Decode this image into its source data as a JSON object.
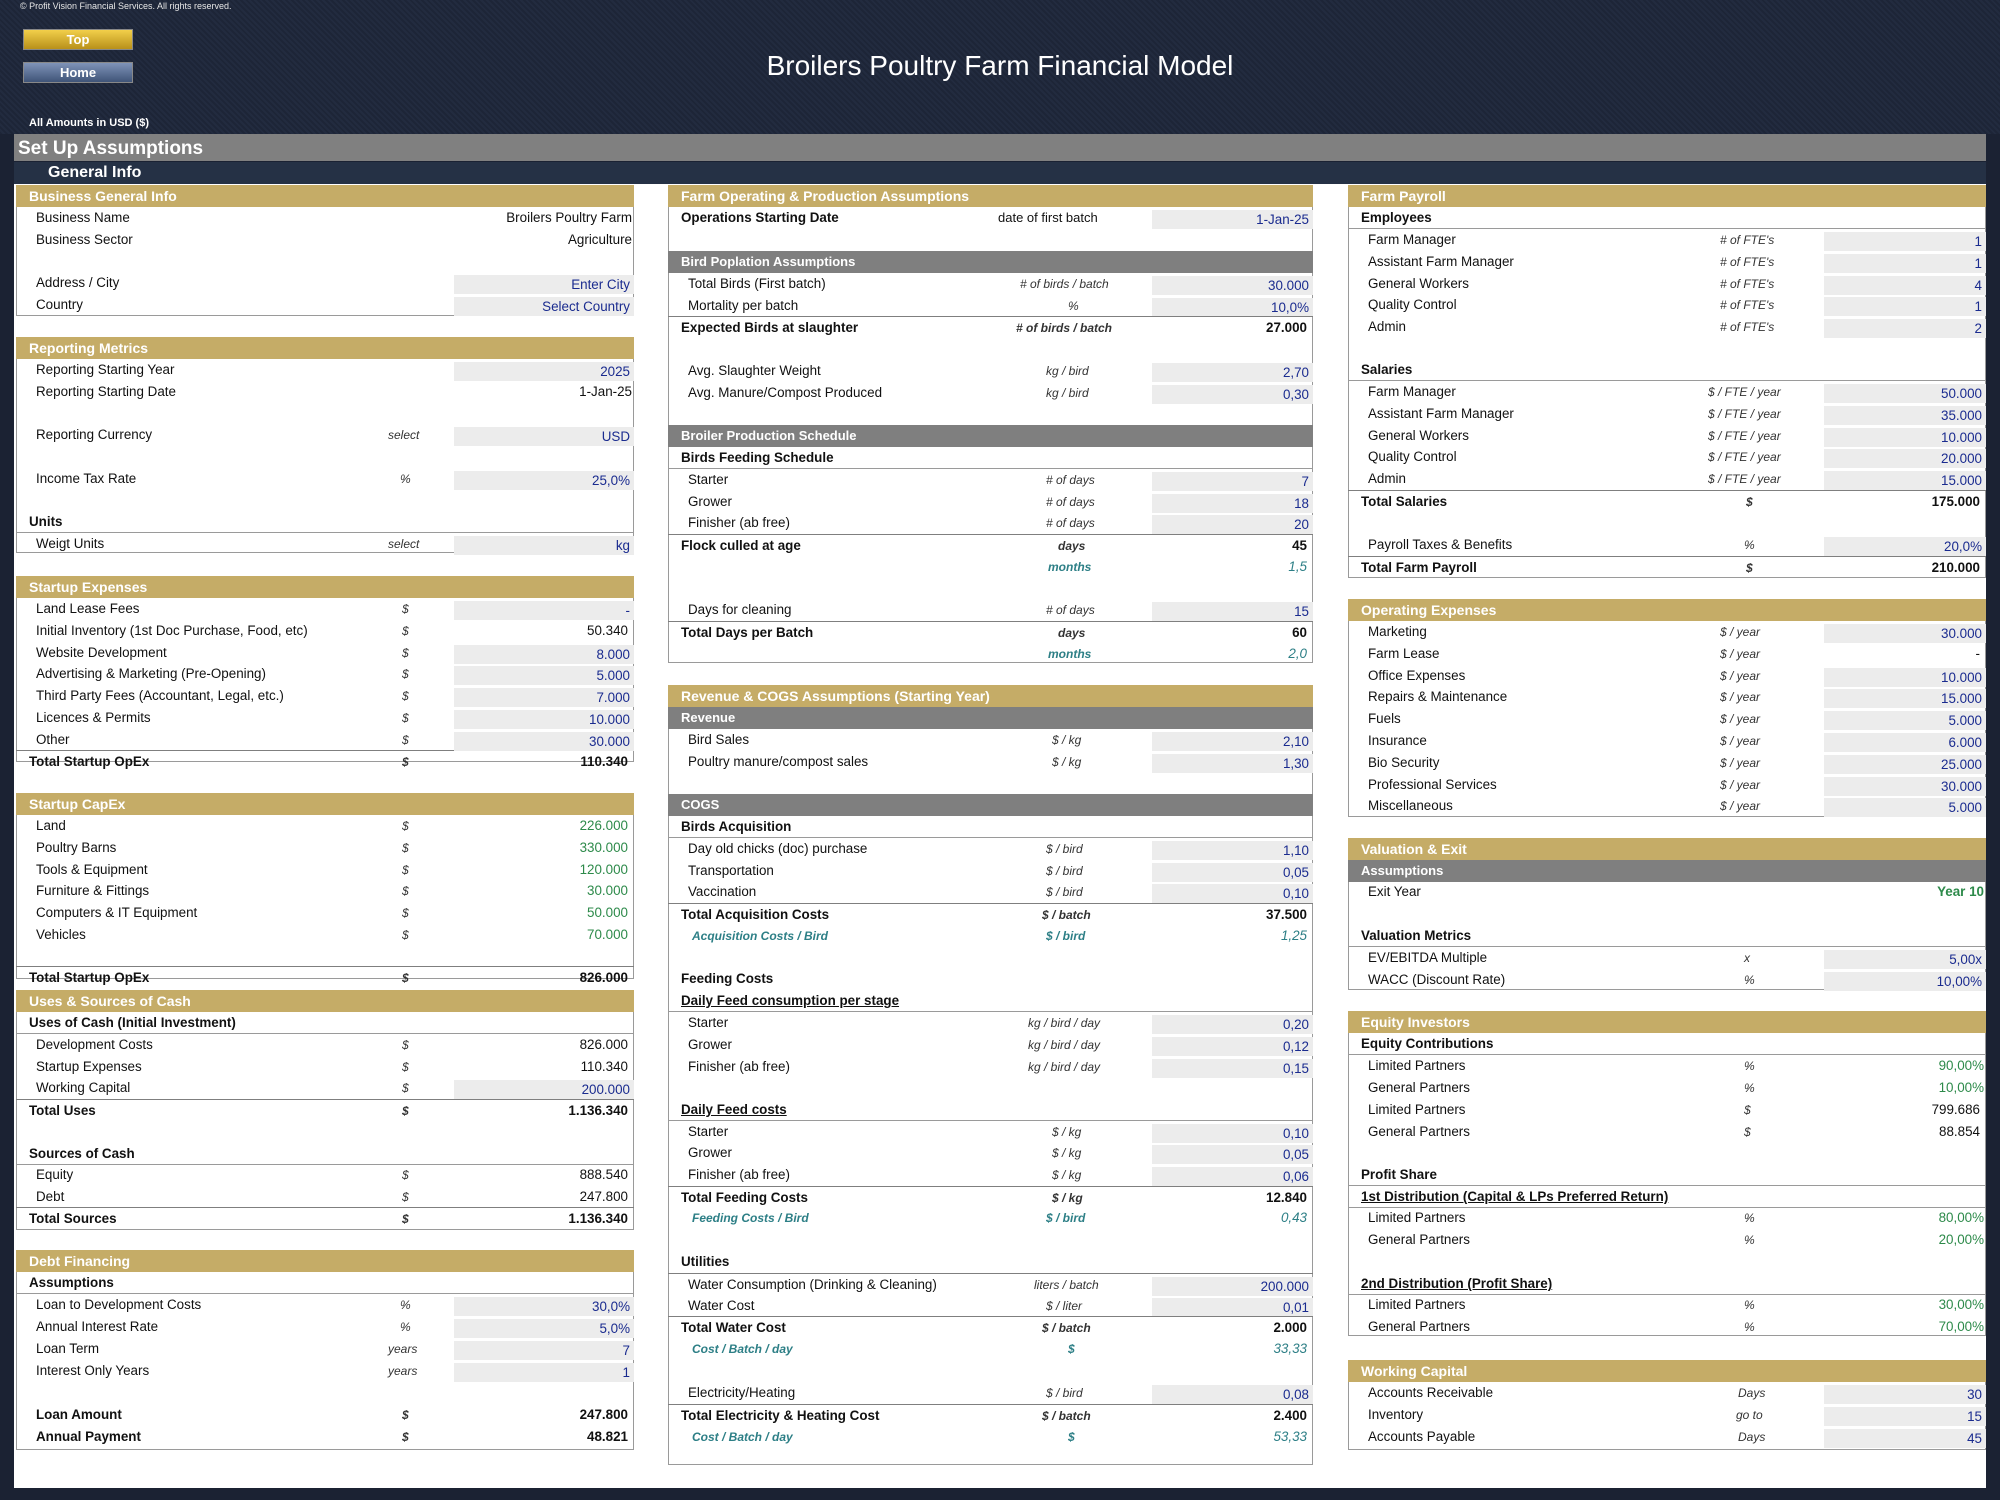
{
  "copyright": "© Profit Vision Financial Services. All rights reserved.",
  "nav": {
    "top": "Top",
    "home": "Home"
  },
  "title": "Broilers Poultry Farm Financial Model",
  "amounts_label": "All Amounts in  USD ($)",
  "section_title": "Set Up Assumptions",
  "subsection_title": "General Info",
  "c1": {
    "business_general_info": "Business General Info",
    "business_name_label": "Business Name",
    "business_name": "Broilers Poultry Farm",
    "business_sector_label": "Business Sector",
    "business_sector": "Agriculture",
    "address_label": "Address / City",
    "address": "Enter City",
    "country_label": "Country",
    "country": "Select Country",
    "reporting_metrics": "Reporting Metrics",
    "rep_year_label": "Reporting Starting Year",
    "rep_year": "2025",
    "rep_date_label": "Reporting Starting Date",
    "rep_date": "1-Jan-25",
    "rep_currency_label": "Reporting Currency",
    "select": "select",
    "rep_currency": "USD",
    "tax_label": "Income Tax Rate",
    "pct": "%",
    "tax": "25,0%",
    "units": "Units",
    "weight_label": "Weigt Units",
    "weight": "kg",
    "startup_expenses": "Startup Expenses",
    "dollar": "$",
    "dash": "-",
    "se": [
      {
        "l": "Land Lease Fees",
        "v": "-",
        "input": true
      },
      {
        "l": "Initial Inventory (1st Doc Purchase, Food, etc)",
        "v": "50.340",
        "input": false
      },
      {
        "l": "Website Development",
        "v": "8.000",
        "input": true
      },
      {
        "l": "Advertising & Marketing (Pre-Opening)",
        "v": "5.000",
        "input": true
      },
      {
        "l": "Third Party Fees (Accountant, Legal, etc.)",
        "v": "7.000",
        "input": true
      },
      {
        "l": "Licences & Permits",
        "v": "10.000",
        "input": true
      },
      {
        "l": "Other",
        "v": "30.000",
        "input": true
      }
    ],
    "total_startup_opex_label": "Total Startup OpEx",
    "total_startup_opex": "110.340",
    "startup_capex": "Startup CapEx",
    "sc": [
      {
        "l": "Land",
        "v": "226.000"
      },
      {
        "l": "Poultry Barns",
        "v": "330.000"
      },
      {
        "l": "Tools & Equipment",
        "v": "120.000"
      },
      {
        "l": "Furniture & Fittings",
        "v": "30.000"
      },
      {
        "l": "Computers & IT Equipment",
        "v": "50.000"
      },
      {
        "l": "Vehicles",
        "v": "70.000"
      }
    ],
    "total_capex_label": "Total Startup OpEx",
    "total_capex": "826.000",
    "uses_sources": "Uses & Sources of Cash",
    "uses_head": "Uses of Cash (Initial Investment)",
    "dev_label": "Development Costs",
    "dev": "826.000",
    "se_label": "Startup Expenses",
    "se_val": "110.340",
    "wc_label": "Working Capital",
    "wc": "200.000",
    "total_uses_label": "Total Uses",
    "total_uses": "1.136.340",
    "sources_head": "Sources of Cash",
    "equity_label": "Equity",
    "equity": "888.540",
    "debt_label": "Debt",
    "debt": "247.800",
    "total_sources_label": "Total Sources",
    "total_sources": "1.136.340",
    "debt_financing": "Debt Financing",
    "assumptions": "Assumptions",
    "ltd_label": "Loan to Development Costs",
    "ltd": "30,0%",
    "air_label": "Annual Interest Rate",
    "air": "5,0%",
    "term_label": "Loan Term",
    "years": "years",
    "term": "7",
    "io_label": "Interest Only Years",
    "io": "1",
    "loan_label": "Loan Amount",
    "loan": "247.800",
    "ap_label": "Annual Payment",
    "ap": "48.821"
  },
  "c2": {
    "farm_op": "Farm Operating & Production Assumptions",
    "osd_label": "Operations Starting Date",
    "osd_unit": "date of first batch",
    "osd": "1-Jan-25",
    "bird_pop": "Bird Poplation Assumptions",
    "tb_label": "Total Birds (First batch)",
    "tb_unit": "# of birds / batch",
    "tb": "30.000",
    "mort_label": "Mortality per batch",
    "pct": "%",
    "mort": "10,0%",
    "exp_label": "Expected Birds at slaughter",
    "exp_unit": "# of birds / batch",
    "exp": "27.000",
    "asw_label": "Avg. Slaughter Weight",
    "kgbird": "kg / bird",
    "asw": "2,70",
    "amc_label": "Avg. Manure/Compost Produced",
    "amc": "0,30",
    "schedule": "Broiler Production Schedule",
    "feeding_schedule": "Birds Feeding Schedule",
    "ofdays": "# of days",
    "starter": "Starter",
    "starter_d": "7",
    "grower": "Grower",
    "grower_d": "18",
    "finisher": "Finisher (ab free)",
    "finisher_d": "20",
    "culled_label": "Flock culled at age",
    "days": "days",
    "culled": "45",
    "months": "months",
    "culled_m": "1,5",
    "cleaning_label": "Days for cleaning",
    "cleaning": "15",
    "tdb_label": "Total Days per Batch",
    "tdb": "60",
    "tdb_m": "2,0",
    "rev_cogs": "Revenue & COGS Assumptions (Starting Year)",
    "revenue": "Revenue",
    "perkg": "$ / kg",
    "bird_sales_label": "Bird Sales",
    "bird_sales": "2,10",
    "manure_label": "Poultry manure/compost sales",
    "manure": "1,30",
    "cogs": "COGS",
    "acq_head": "Birds Acquisition",
    "perbird": "$ / bird",
    "doc_label": "Day old chicks (doc) purchase",
    "doc": "1,10",
    "trans_label": "Transportation",
    "trans": "0,05",
    "vacc_label": "Vaccination",
    "vacc": "0,10",
    "tac_label": "Total Acquisition Costs",
    "perbatch": "$ / batch",
    "tac": "37.500",
    "acpb_label": "Acquisition Costs / Bird",
    "acpb": "1,25",
    "feeding_costs": "Feeding Costs",
    "dfc_head": "Daily Feed consumption per stage",
    "kgbirdday": "kg / bird / day",
    "fc_starter": "0,20",
    "fc_grower": "0,12",
    "fc_finisher": "0,15",
    "dfcost_head": "Daily Feed costs",
    "fp_starter": "0,10",
    "fp_grower": "0,05",
    "fp_finisher": "0,06",
    "tfc_label": "Total Feeding Costs",
    "tfc": "12.840",
    "fcpb_label": "Feeding Costs / Bird",
    "fcpb": "0,43",
    "utilities": "Utilities",
    "wcons_label": "Water Consumption (Drinking & Cleaning)",
    "litersbatch": "liters / batch",
    "wcons": "200.000",
    "wcost_label": "Water Cost",
    "perliter": "$ / liter",
    "wcost": "0,01",
    "twc_label": "Total Water Cost",
    "twc": "2.000",
    "cbd_label": "Cost / Batch / day",
    "dollar": "$",
    "cbd_w": "33,33",
    "elec_label": "Electricity/Heating",
    "elec": "0,08",
    "tehc_label": "Total Electricity & Heating Cost",
    "tehc": "2.400",
    "cbd_e": "53,33"
  },
  "c3": {
    "farm_payroll": "Farm Payroll",
    "employees": "Employees",
    "fte": "# of FTE's",
    "emp": [
      {
        "l": "Farm Manager",
        "v": "1"
      },
      {
        "l": "Assistant Farm Manager",
        "v": "1"
      },
      {
        "l": "General Workers",
        "v": "4"
      },
      {
        "l": "Quality Control",
        "v": "1"
      },
      {
        "l": "Admin",
        "v": "2"
      }
    ],
    "salaries": "Salaries",
    "fteyear": "$ / FTE / year",
    "sal": [
      {
        "l": "Farm Manager",
        "v": "50.000"
      },
      {
        "l": "Assistant Farm Manager",
        "v": "35.000"
      },
      {
        "l": "General Workers",
        "v": "10.000"
      },
      {
        "l": "Quality Control",
        "v": "20.000"
      },
      {
        "l": "Admin",
        "v": "15.000"
      }
    ],
    "total_sal_label": "Total Salaries",
    "dollar": "$",
    "total_sal": "175.000",
    "ptb_label": "Payroll Taxes & Benefits",
    "pct": "%",
    "ptb": "20,0%",
    "tfp_label": "Total Farm Payroll",
    "tfp": "210.000",
    "opex": "Operating Expenses",
    "peryear": "$ / year",
    "ox": [
      {
        "l": "Marketing",
        "v": "30.000",
        "input": true
      },
      {
        "l": "Farm Lease",
        "v": "-",
        "input": false
      },
      {
        "l": "Office Expenses",
        "v": "10.000",
        "input": true
      },
      {
        "l": "Repairs & Maintenance",
        "v": "15.000",
        "input": true
      },
      {
        "l": "Fuels",
        "v": "5.000",
        "input": true
      },
      {
        "l": "Insurance",
        "v": "6.000",
        "input": true
      },
      {
        "l": "Bio Security",
        "v": "25.000",
        "input": true
      },
      {
        "l": "Professional Services",
        "v": "30.000",
        "input": true
      },
      {
        "l": "Miscellaneous",
        "v": "5.000",
        "input": true
      }
    ],
    "valuation": "Valuation & Exit",
    "assumptions": "Assumptions",
    "exit_label": "Exit Year",
    "exit": "Year 10",
    "val_metrics": "Valuation Metrics",
    "ev_label": "EV/EBITDA Multiple",
    "x": "x",
    "ev": "5,00x",
    "wacc_label": "WACC (Discount Rate)",
    "wacc": "10,00%",
    "equity_investors": "Equity Investors",
    "eq_contrib": "Equity Contributions",
    "lp": "Limited Partners",
    "gp": "General Partners",
    "lp_pct": "90,00%",
    "gp_pct": "10,00%",
    "lp_amt": "799.686",
    "gp_amt": "88.854",
    "profit_share": "Profit Share",
    "dist1": "1st Distribution (Capital & LPs Preferred Return)",
    "d1_lp": "80,00%",
    "d1_gp": "20,00%",
    "dist2": "2nd Distribution (Profit Share)",
    "d2_lp": "30,00%",
    "d2_gp": "70,00%",
    "working_capital": "Working Capital",
    "ar_label": "Accounts Receivable",
    "daysu": "Days",
    "ar": "30",
    "inv_label": "Inventory",
    "goto": "go to",
    "inv": "15",
    "ap_label": "Accounts Payable",
    "ap": "45"
  },
  "colors": {
    "gold": "#c5ac67",
    "grey": "#7f7f7f",
    "navy": "#253145",
    "input_blue": "#1a2b8f",
    "green": "#2d8a4a",
    "teal": "#2d7f86"
  }
}
